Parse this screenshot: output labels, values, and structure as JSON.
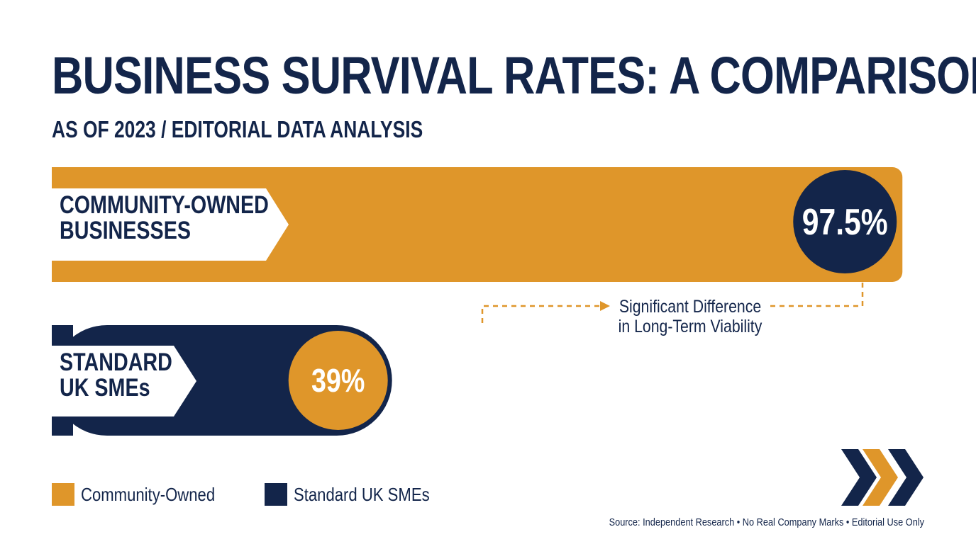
{
  "title": "BUSINESS SURVIVAL RATES: A COMPARISON",
  "subtitle": "AS OF 2023 / EDITORIAL DATA ANALYSIS",
  "chart_data": {
    "type": "bar",
    "orientation": "horizontal",
    "categories": [
      "COMMUNITY-OWNED BUSINESSES",
      "STANDARD UK SMEs"
    ],
    "category_lines": [
      [
        "COMMUNITY-OWNED",
        "BUSINESSES"
      ],
      [
        "STANDARD",
        "UK SMEs"
      ]
    ],
    "values": [
      97.5,
      39
    ],
    "value_labels": [
      "97.5%",
      "39%"
    ],
    "colors": [
      "#df962a",
      "#13254a"
    ],
    "xlim": [
      0,
      100
    ],
    "annotation": [
      "Significant Difference",
      "in Long-Term Viability"
    ],
    "legend": {
      "position": "bottom-left",
      "items": [
        {
          "label": "Community-Owned",
          "color": "#df962a"
        },
        {
          "label": "Standard UK SMEs",
          "color": "#13254a"
        }
      ]
    },
    "grid": false
  },
  "source": "Source: Independent Research • No Real Company Marks • Editorial Use Only",
  "colors": {
    "navy": "#13254a",
    "orange": "#df962a",
    "background": "#ffffff"
  },
  "logo_icon": "chevron-logo-icon"
}
